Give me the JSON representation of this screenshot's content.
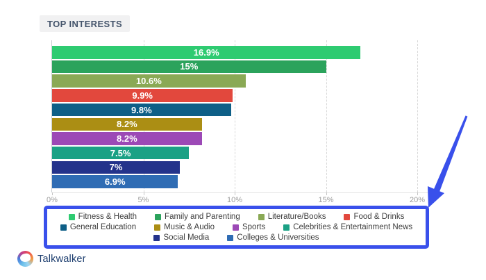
{
  "title": "TOP INTERESTS",
  "chart_data": {
    "type": "bar",
    "orientation": "horizontal",
    "title": "TOP INTERESTS",
    "xlabel": "",
    "ylabel": "",
    "xlim": [
      0,
      20
    ],
    "x_ticks": [
      "0%",
      "5%",
      "10%",
      "15%",
      "20%"
    ],
    "x_tick_values": [
      0,
      5,
      10,
      15,
      20
    ],
    "grid": "vertical-dashed",
    "legend_position": "bottom",
    "series": [
      {
        "label": "Fitness & Health",
        "value": 16.9,
        "display": "16.9%",
        "color": "#2ecb71"
      },
      {
        "label": "Family and Parenting",
        "value": 15,
        "display": "15%",
        "color": "#2ba35c"
      },
      {
        "label": "Literature/Books",
        "value": 10.6,
        "display": "10.6%",
        "color": "#8aa955"
      },
      {
        "label": "Food & Drinks",
        "value": 9.9,
        "display": "9.9%",
        "color": "#e2483d"
      },
      {
        "label": "General Education",
        "value": 9.8,
        "display": "9.8%",
        "color": "#0e5f87"
      },
      {
        "label": "Music & Audio",
        "value": 8.2,
        "display": "8.2%",
        "color": "#ab8e14"
      },
      {
        "label": "Sports",
        "value": 8.2,
        "display": "8.2%",
        "color": "#9c49b6"
      },
      {
        "label": "Celebrities & Entertainment News",
        "value": 7.5,
        "display": "7.5%",
        "color": "#1ba185"
      },
      {
        "label": "Social Media",
        "value": 7,
        "display": "7%",
        "color": "#24338b"
      },
      {
        "label": "Colleges & Universities",
        "value": 6.9,
        "display": "6.9%",
        "color": "#2f6cb4"
      }
    ]
  },
  "legend": {
    "rows": [
      [
        0,
        1,
        2,
        3
      ],
      [
        4,
        5,
        6,
        7
      ],
      [
        8,
        9
      ]
    ]
  },
  "annotations": {
    "highlight_box_color": "#3950eb",
    "arrow_color": "#3950eb",
    "arrow_icon": "down-left-arrow-icon"
  },
  "footer": {
    "brand": "Talkwalker",
    "logo": "talkwalker-logo-icon"
  }
}
